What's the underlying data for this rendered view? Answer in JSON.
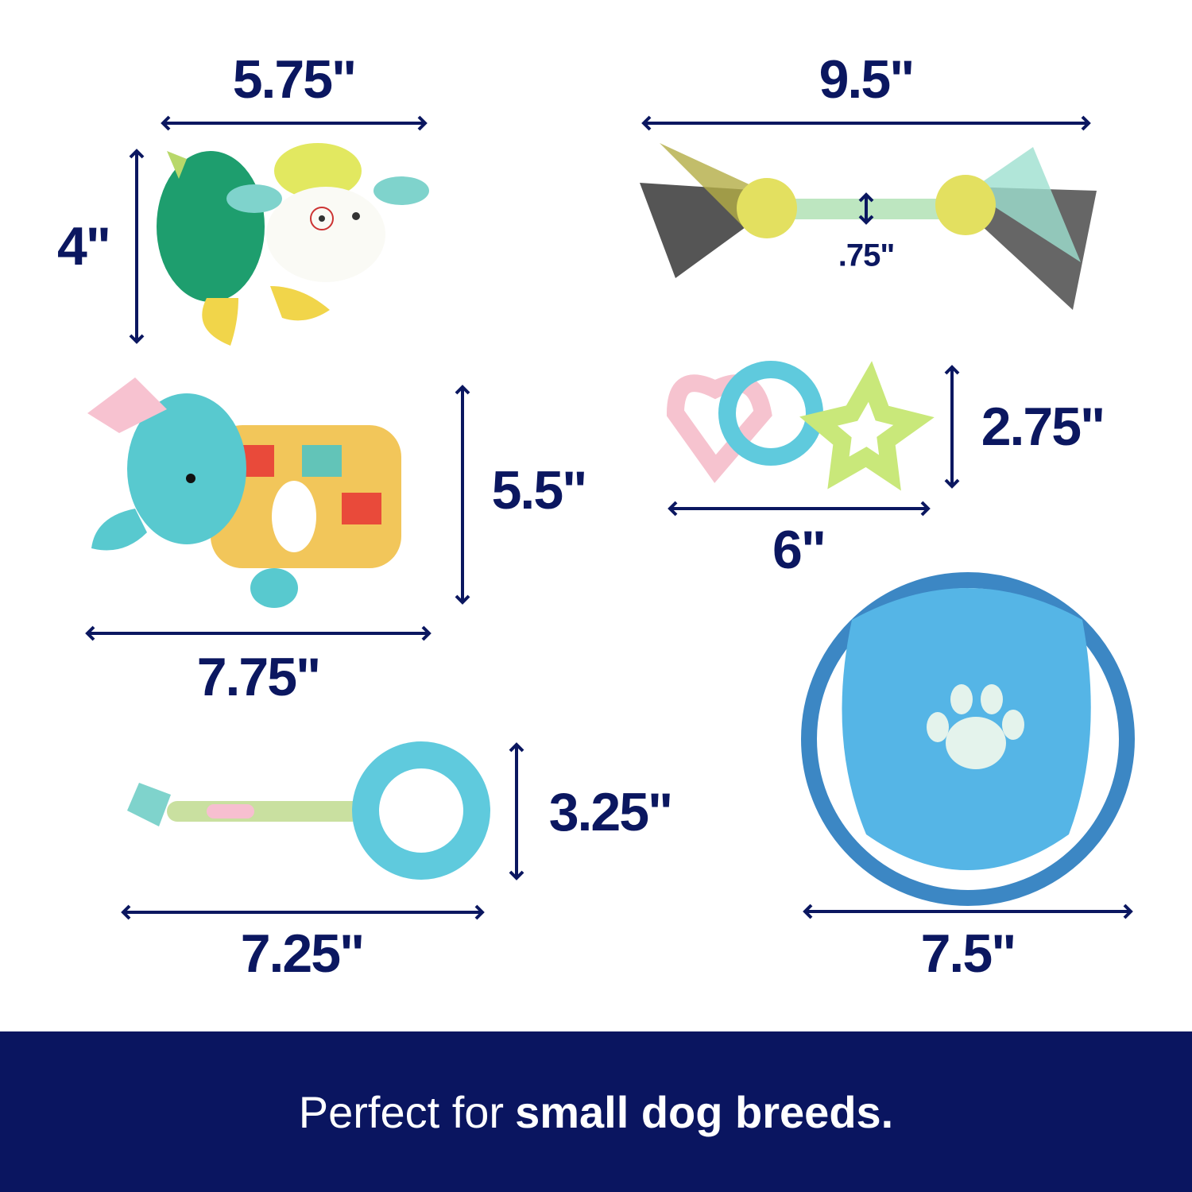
{
  "colors": {
    "navy": "#0a1560",
    "dimension_text": "#0b1760"
  },
  "products": [
    {
      "name": "sheep plush",
      "width": "5.75\"",
      "height": "4\""
    },
    {
      "name": "rope tug",
      "width": "9.5\"",
      "thickness": ".75\""
    },
    {
      "name": "elephant plush",
      "height": "5.5\"",
      "width": "7.75\""
    },
    {
      "name": "teething rings",
      "height": "2.75\"",
      "width": "6\""
    },
    {
      "name": "braided ring tug",
      "height": "3.25\"",
      "width": "7.25\""
    },
    {
      "name": "flying disc",
      "width": "7.5\""
    }
  ],
  "banner": {
    "regular": "Perfect for",
    "bold": "small dog breeds."
  }
}
